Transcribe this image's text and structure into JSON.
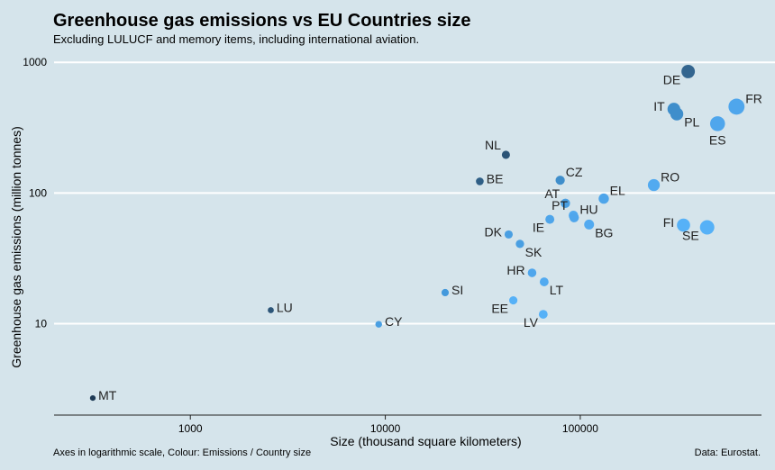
{
  "chart_data": {
    "type": "scatter",
    "title": "Greenhouse gas emissions vs EU Countries size",
    "subtitle": "Excluding LULUCF and memory items, including international aviation.",
    "xlabel": "Size (thousand square kilometers)",
    "ylabel": "Greenhouse gas emissions (million tonnes)",
    "caption_left": "Axes in logarithmic scale, Colour: Emissions / Country size",
    "caption_right": "Data: Eurostat.",
    "x_scale": "log",
    "y_scale": "log",
    "xlim": [
      200,
      850000
    ],
    "ylim": [
      2.0,
      1400
    ],
    "x_ticks": [
      {
        "value": 1000,
        "label": "1000"
      },
      {
        "value": 10000,
        "label": "10000"
      },
      {
        "value": 100000,
        "label": "100000"
      }
    ],
    "y_ticks": [
      {
        "value": 10,
        "label": "10"
      },
      {
        "value": 100,
        "label": "100"
      },
      {
        "value": 1000,
        "label": "1000"
      }
    ],
    "grid": "horizontal",
    "points": [
      {
        "label": "MT",
        "x": 316,
        "y": 2.7,
        "color": "#1e3a55",
        "label_pos": "right"
      },
      {
        "label": "LU",
        "x": 2586,
        "y": 12.7,
        "color": "#2c5578",
        "label_pos": "right"
      },
      {
        "label": "CY",
        "x": 9251,
        "y": 9.9,
        "color": "#4a9fe2",
        "label_pos": "right"
      },
      {
        "label": "SI",
        "x": 20273,
        "y": 17.3,
        "color": "#4499dc",
        "label_pos": "right"
      },
      {
        "label": "EE",
        "x": 45339,
        "y": 15.1,
        "color": "#56b1f7",
        "label_pos": "left-below"
      },
      {
        "label": "LV",
        "x": 64573,
        "y": 11.8,
        "color": "#56b1f7",
        "label_pos": "left-below"
      },
      {
        "label": "LT",
        "x": 65286,
        "y": 20.9,
        "color": "#52aaf0",
        "label_pos": "right-below"
      },
      {
        "label": "HR",
        "x": 56594,
        "y": 24.5,
        "color": "#4fa6ec",
        "label_pos": "left"
      },
      {
        "label": "SK",
        "x": 49035,
        "y": 40.8,
        "color": "#4a9fe2",
        "label_pos": "right-below"
      },
      {
        "label": "DK",
        "x": 42921,
        "y": 48.2,
        "color": "#4a9fe2",
        "label_pos": "left"
      },
      {
        "label": "IE",
        "x": 69797,
        "y": 62.9,
        "color": "#4ea5ea",
        "label_pos": "left-below"
      },
      {
        "label": "PT",
        "x": 92225,
        "y": 67.4,
        "color": "#52aaf0",
        "label_pos": "left-above"
      },
      {
        "label": "HU",
        "x": 93024,
        "y": 64.9,
        "color": "#4fa6ec",
        "label_pos": "right-above"
      },
      {
        "label": "AT",
        "x": 83879,
        "y": 83.4,
        "color": "#4a9fe2",
        "label_pos": "left-above"
      },
      {
        "label": "BG",
        "x": 110996,
        "y": 57.4,
        "color": "#52aaf0",
        "label_pos": "right-below"
      },
      {
        "label": "CZ",
        "x": 78868,
        "y": 125.2,
        "color": "#3f8ecb",
        "label_pos": "right-above"
      },
      {
        "label": "EL",
        "x": 131957,
        "y": 90.6,
        "color": "#4ea5ea",
        "label_pos": "right-above"
      },
      {
        "label": "BE",
        "x": 30528,
        "y": 122.8,
        "color": "#2f5f86",
        "label_pos": "right"
      },
      {
        "label": "NL",
        "x": 41543,
        "y": 196.0,
        "color": "#2b5477",
        "label_pos": "left-above"
      },
      {
        "label": "RO",
        "x": 238391,
        "y": 115.1,
        "color": "#52aaf0",
        "label_pos": "right-above"
      },
      {
        "label": "FI",
        "x": 338440,
        "y": 56.8,
        "color": "#56b1f7",
        "label_pos": "left"
      },
      {
        "label": "SE",
        "x": 447425,
        "y": 54.6,
        "color": "#56b1f7",
        "label_pos": "left-below"
      },
      {
        "label": "IT",
        "x": 302073,
        "y": 438.1,
        "color": "#3f8ecb",
        "label_pos": "left"
      },
      {
        "label": "PL",
        "x": 312679,
        "y": 402.3,
        "color": "#3f8ecb",
        "label_pos": "right-below"
      },
      {
        "label": "ES",
        "x": 505944,
        "y": 339.2,
        "color": "#4fa6ec",
        "label_pos": "below"
      },
      {
        "label": "FR",
        "x": 632834,
        "y": 458.0,
        "color": "#4fa6ec",
        "label_pos": "right-above"
      },
      {
        "label": "DE",
        "x": 357588,
        "y": 850.5,
        "color": "#33658f",
        "label_pos": "left-below"
      }
    ]
  },
  "colors": {
    "background": "#d5e4eb",
    "grid": "#ffffff",
    "axis": "#222222"
  }
}
